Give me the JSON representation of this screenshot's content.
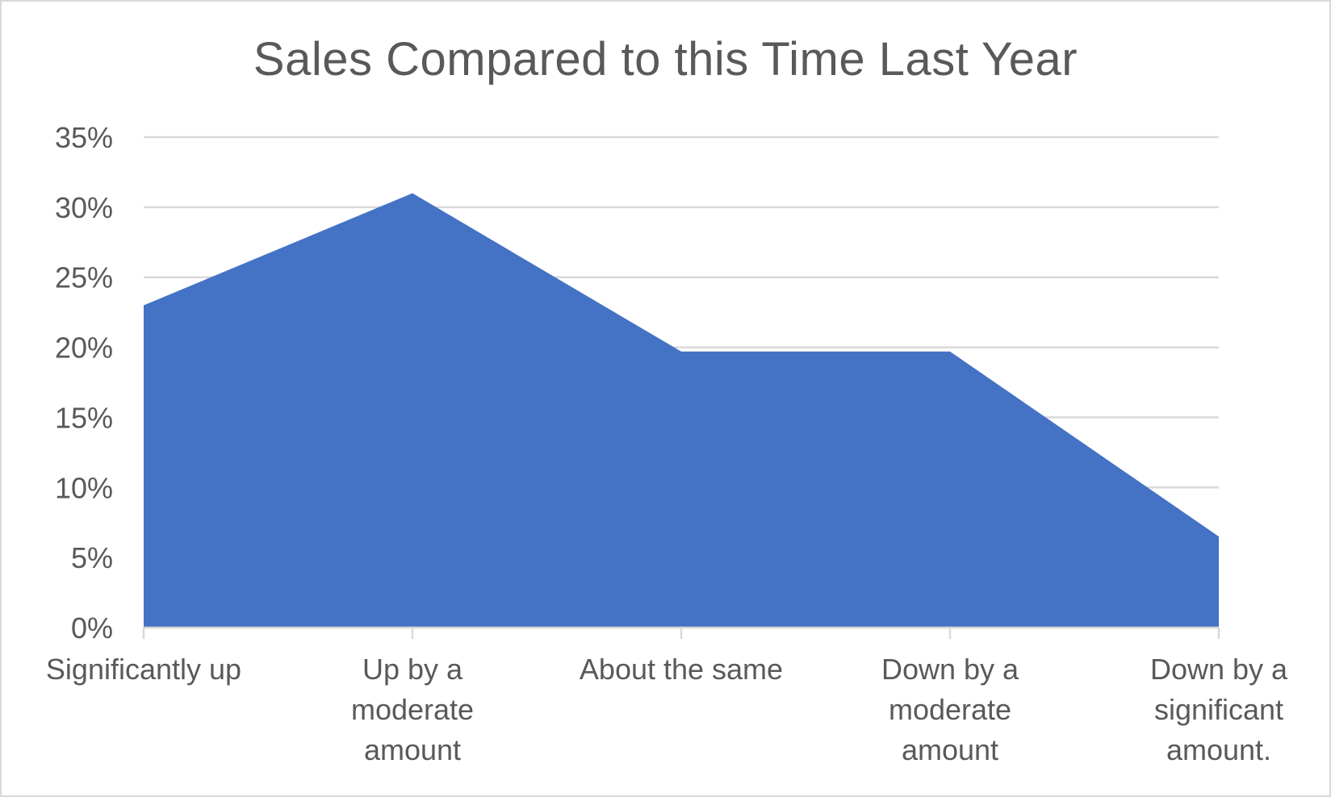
{
  "chart_data": {
    "type": "area",
    "title": "Sales Compared to this Time Last Year",
    "xlabel": "",
    "ylabel": "",
    "categories": [
      [
        "Significantly up"
      ],
      [
        "Up by a",
        "moderate",
        "amount"
      ],
      [
        "About the same"
      ],
      [
        "Down by a",
        "moderate",
        "amount"
      ],
      [
        "Down by a",
        "significant",
        "amount."
      ]
    ],
    "values": [
      23,
      31,
      19.7,
      19.7,
      6.5
    ],
    "ylim": [
      0,
      35
    ],
    "yticks": [
      "0%",
      "5%",
      "10%",
      "15%",
      "20%",
      "25%",
      "30%",
      "35%"
    ],
    "ytick_values": [
      0,
      5,
      10,
      15,
      20,
      25,
      30,
      35
    ],
    "grid": true,
    "legend": "none",
    "colors": {
      "fill": "#4472c4",
      "grid": "#d9d9d9",
      "text": "#595959",
      "axis": "#d9d9d9"
    }
  }
}
